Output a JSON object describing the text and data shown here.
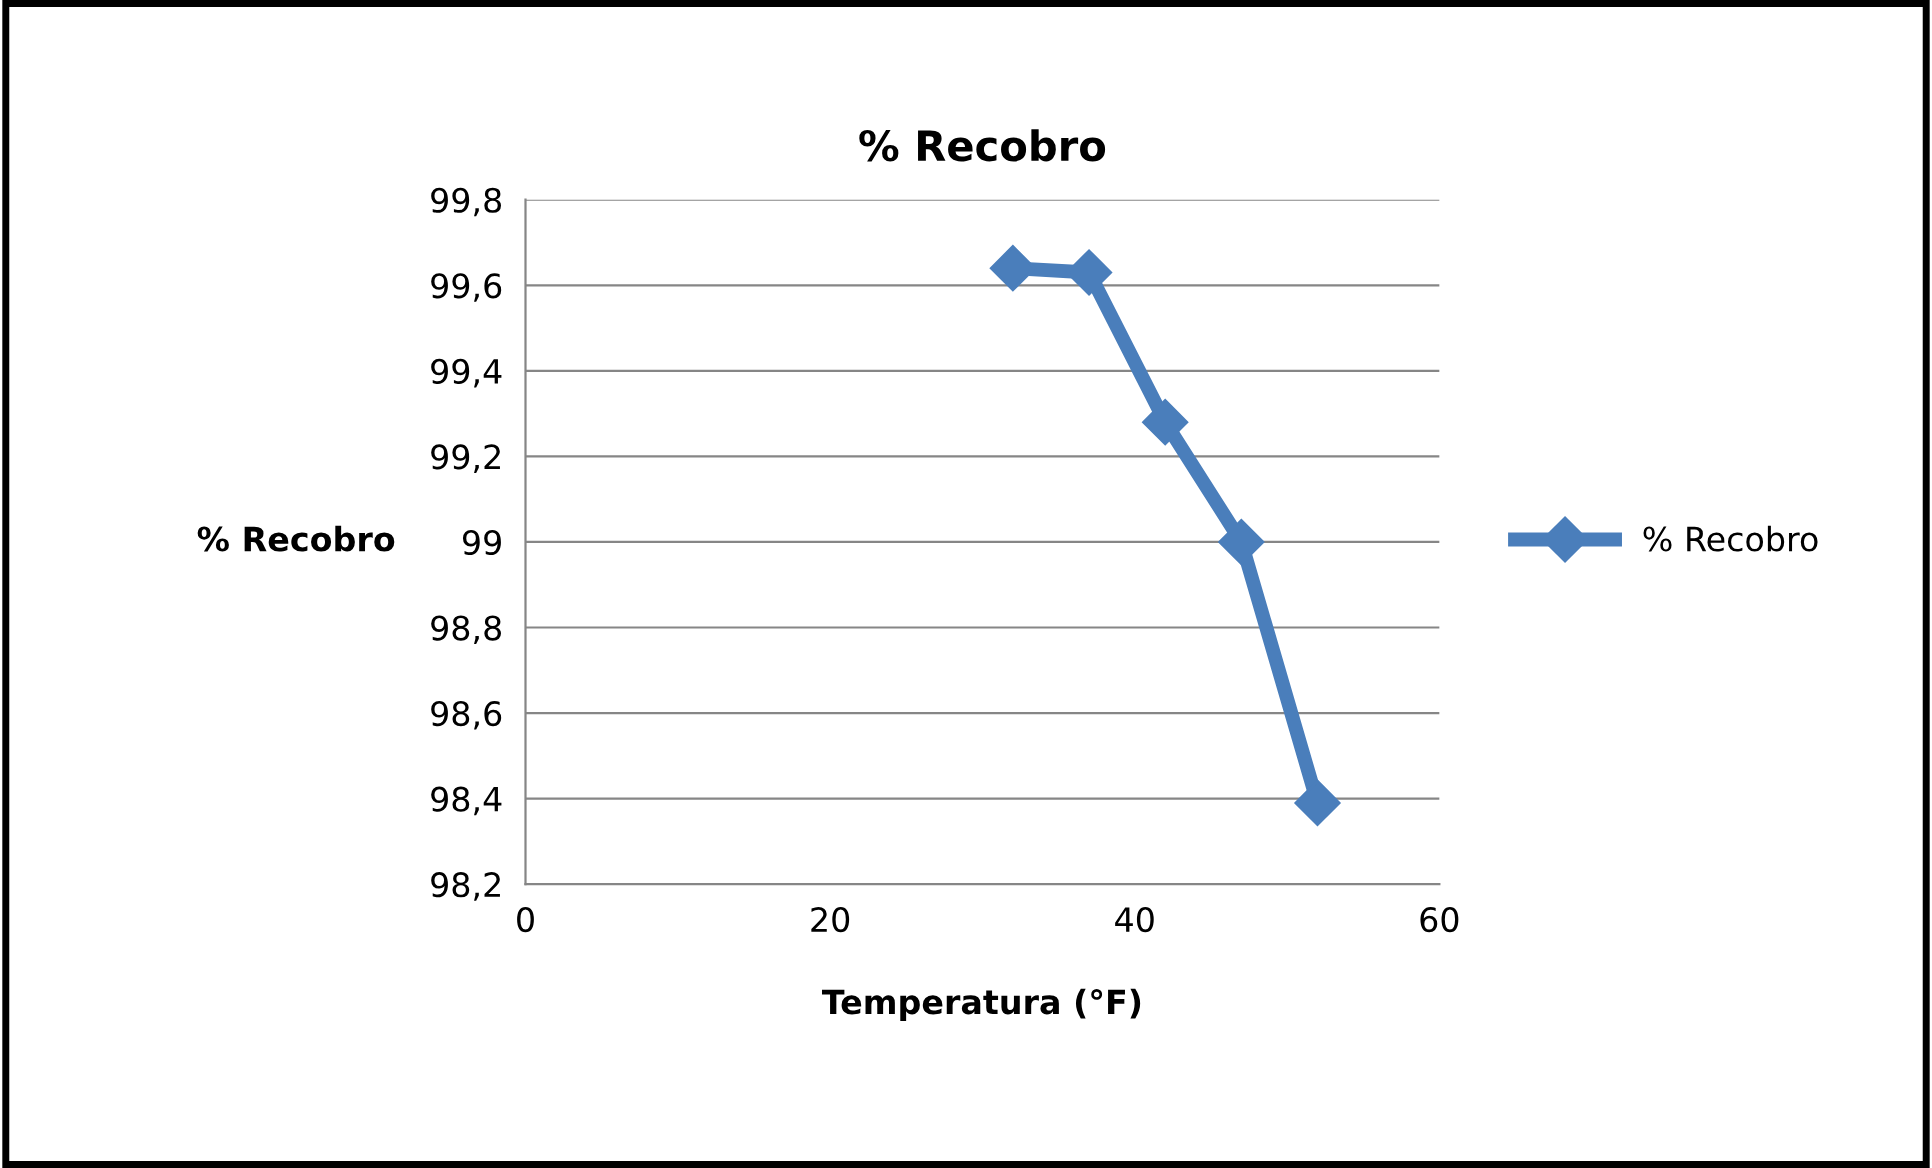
{
  "chart_data": {
    "type": "line",
    "title": "% Recobro",
    "xlabel": "Temperatura (°F)",
    "ylabel": "% Recobro",
    "series": [
      {
        "name": "% Recobro",
        "color": "#4a7ebb",
        "x": [
          32,
          37,
          42,
          47,
          52
        ],
        "values": [
          99.64,
          99.63,
          99.28,
          99.0,
          98.39
        ]
      }
    ],
    "xlim": [
      0,
      60
    ],
    "xticks": [
      0,
      20,
      40,
      60
    ],
    "ylim": [
      98.2,
      99.8
    ],
    "yticks": [
      {
        "value": 98.2,
        "label": "98,2"
      },
      {
        "value": 98.4,
        "label": "98,4"
      },
      {
        "value": 98.6,
        "label": "98,6"
      },
      {
        "value": 98.8,
        "label": "98,8"
      },
      99,
      {
        "value": 99.2,
        "label": "99,2"
      },
      {
        "value": 99.4,
        "label": "99,4"
      },
      {
        "value": 99.6,
        "label": "99,6"
      },
      {
        "value": 99.8,
        "label": "99,8"
      }
    ],
    "grid": "y",
    "legend": "right",
    "marker": "diamond",
    "line_style": "solid"
  }
}
